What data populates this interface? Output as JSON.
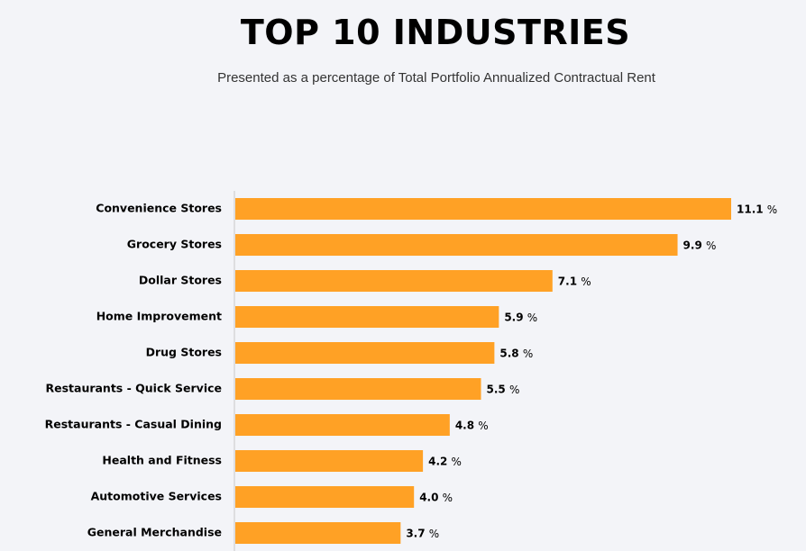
{
  "chart_data": {
    "type": "bar",
    "orientation": "horizontal",
    "title": "TOP 10 INDUSTRIES",
    "subtitle": "Presented as a percentage of Total Portfolio Annualized Contractual Rent",
    "categories": [
      "Convenience Stores",
      "Grocery Stores",
      "Dollar Stores",
      "Home Improvement",
      "Drug Stores",
      "Restaurants - Quick Service",
      "Restaurants - Casual Dining",
      "Health and Fitness",
      "Automotive Services",
      "General Merchandise"
    ],
    "values": [
      11.1,
      9.9,
      7.1,
      5.9,
      5.8,
      5.5,
      4.8,
      4.2,
      4.0,
      3.7
    ],
    "value_labels": [
      "11.1",
      "9.9",
      "7.1",
      "5.9",
      "5.8",
      "5.5",
      "4.8",
      "4.2",
      "4.0",
      "3.7"
    ],
    "value_suffix": "%",
    "xlabel": "",
    "ylabel": "",
    "xlim": [
      0,
      11.1
    ],
    "grid": false,
    "legend": "none",
    "bar_color": "#ffa125",
    "axis_color": "#c8c8c8"
  }
}
